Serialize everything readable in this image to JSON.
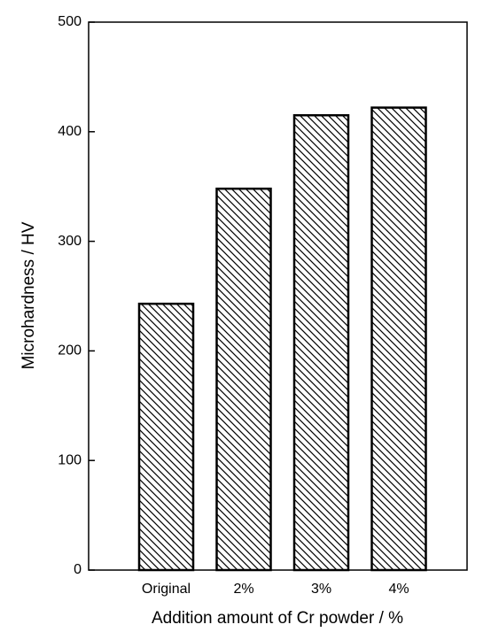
{
  "chart_data": {
    "type": "bar",
    "xlabel": "Addition amount of Cr powder / %",
    "ylabel": "Microhardness / HV",
    "categories": [
      "Original",
      "2%",
      "3%",
      "4%"
    ],
    "values": [
      243,
      348,
      415,
      422
    ],
    "color": "#000000",
    "hatch": true,
    "ylim": [
      0,
      500
    ],
    "yticks": [
      0,
      100,
      200,
      300,
      400,
      500
    ],
    "grid": false
  }
}
